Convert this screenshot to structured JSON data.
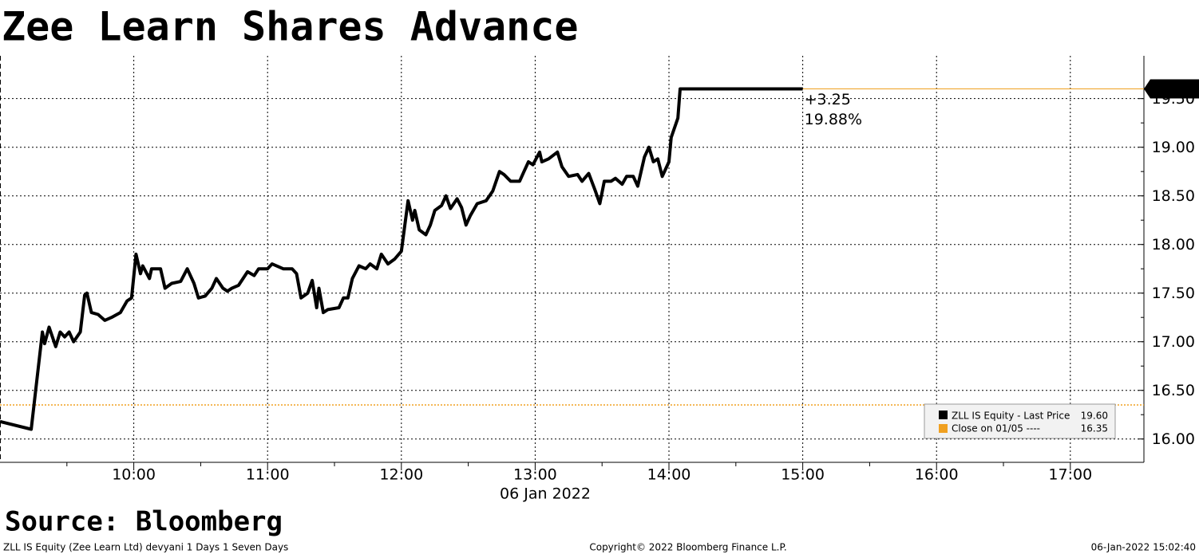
{
  "chart_data": {
    "type": "line",
    "title": "Zee Learn Shares Advance",
    "x_axis_label": "06 Jan 2022",
    "source": "Source: Bloomberg",
    "footer_left": "ZLL IS Equity (Zee Learn Ltd) devyani 1 Days 1 Seven Days",
    "footer_center": "Copyright© 2022 Bloomberg Finance L.P.",
    "footer_right": "06-Jan-2022 15:02:40",
    "x": [
      "09:00",
      "09:14",
      "09:16",
      "09:19",
      "09:20",
      "09:22",
      "09:25",
      "09:27",
      "09:29",
      "09:31",
      "09:33",
      "09:36",
      "09:38",
      "09:39",
      "09:41",
      "09:44",
      "09:47",
      "09:50",
      "09:54",
      "09:57",
      "09:59",
      "10:01",
      "10:03",
      "10:04",
      "10:07",
      "10:08",
      "10:12",
      "10:14",
      "10:17",
      "10:21",
      "10:24",
      "10:27",
      "10:29",
      "10:32",
      "10:35",
      "10:37",
      "10:40",
      "10:42",
      "10:44",
      "10:47",
      "10:51",
      "10:54",
      "10:56",
      "11:00",
      "11:02",
      "11:07",
      "11:11",
      "11:13",
      "11:15",
      "11:18",
      "11:20",
      "11:22",
      "11:23",
      "11:25",
      "11:27",
      "11:32",
      "11:34",
      "11:36",
      "11:38",
      "11:41",
      "11:44",
      "11:46",
      "11:49",
      "11:51",
      "11:54",
      "11:57",
      "12:00",
      "12:03",
      "12:05",
      "12:06",
      "12:08",
      "12:11",
      "12:13",
      "12:15",
      "12:18",
      "12:20",
      "12:22",
      "12:25",
      "12:27",
      "12:29",
      "12:31",
      "12:34",
      "12:38",
      "12:41",
      "12:44",
      "12:46",
      "12:49",
      "12:53",
      "12:55",
      "12:57",
      "12:59",
      "13:02",
      "13:03",
      "13:06",
      "13:10",
      "13:12",
      "13:15",
      "13:19",
      "13:21",
      "13:24",
      "13:27",
      "13:29",
      "13:31",
      "13:34",
      "13:36",
      "13:39",
      "13:41",
      "13:44",
      "13:46",
      "13:49",
      "13:51",
      "13:53",
      "13:55",
      "13:57",
      "14:00",
      "14:01",
      "14:04",
      "14:05",
      "15:00"
    ],
    "series": [
      {
        "name": "ZLL IS Equity - Last Price",
        "color": "#000000",
        "legend_value": "19.60",
        "values": [
          16.18,
          16.1,
          16.5,
          17.1,
          16.98,
          17.15,
          16.95,
          17.1,
          17.05,
          17.1,
          17.0,
          17.1,
          17.48,
          17.5,
          17.3,
          17.28,
          17.22,
          17.25,
          17.3,
          17.42,
          17.45,
          17.9,
          17.7,
          17.78,
          17.65,
          17.75,
          17.75,
          17.55,
          17.6,
          17.62,
          17.75,
          17.6,
          17.45,
          17.47,
          17.55,
          17.65,
          17.55,
          17.52,
          17.55,
          17.58,
          17.72,
          17.68,
          17.75,
          17.75,
          17.8,
          17.75,
          17.75,
          17.7,
          17.45,
          17.5,
          17.63,
          17.35,
          17.55,
          17.3,
          17.33,
          17.35,
          17.45,
          17.45,
          17.65,
          17.78,
          17.75,
          17.8,
          17.75,
          17.9,
          17.8,
          17.85,
          17.93,
          18.45,
          18.25,
          18.35,
          18.15,
          18.1,
          18.2,
          18.35,
          18.4,
          18.5,
          18.37,
          18.47,
          18.38,
          18.2,
          18.3,
          18.42,
          18.45,
          18.55,
          18.75,
          18.72,
          18.65,
          18.65,
          18.75,
          18.85,
          18.82,
          18.95,
          18.85,
          18.88,
          18.95,
          18.8,
          18.7,
          18.72,
          18.65,
          18.73,
          18.55,
          18.42,
          18.65,
          18.65,
          18.68,
          18.62,
          18.7,
          18.7,
          18.6,
          18.9,
          19.0,
          18.85,
          18.88,
          18.7,
          18.85,
          19.1,
          19.3,
          19.6,
          19.6
        ]
      }
    ],
    "reference_line": {
      "name": "Close on 01/05 ----",
      "value": 16.35,
      "label": "16.35",
      "color": "#f0a020"
    },
    "annotations": [
      "+3.25",
      "19.88%"
    ],
    "annotation_color": "#f0a020",
    "xlim": [
      "09:00",
      "17:33"
    ],
    "xticks": [
      "10:00",
      "11:00",
      "12:00",
      "13:00",
      "14:00",
      "15:00",
      "16:00",
      "17:00"
    ],
    "ylim": [
      15.76,
      19.94
    ],
    "yticks": [
      {
        "value": 16,
        "label": "16.00"
      },
      {
        "value": 16.5,
        "label": "16.50"
      },
      {
        "value": 17,
        "label": "17.00"
      },
      {
        "value": 17.5,
        "label": "17.50"
      },
      {
        "value": 18,
        "label": "18.00"
      },
      {
        "value": 18.5,
        "label": "18.50"
      },
      {
        "value": 19,
        "label": "19.00"
      },
      {
        "value": 19.5,
        "label": "19.50"
      }
    ],
    "grid": true
  }
}
